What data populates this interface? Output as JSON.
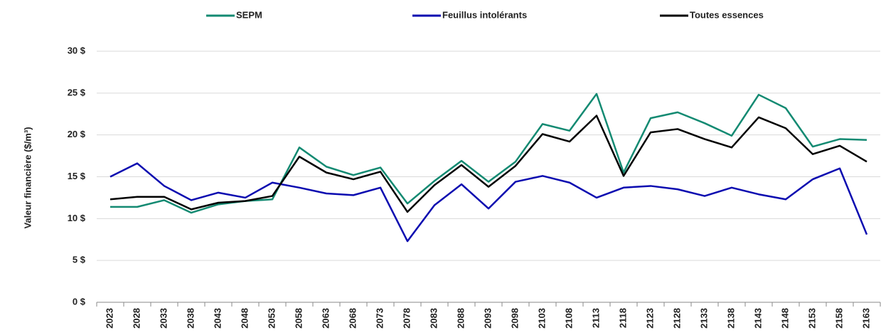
{
  "chart_data": {
    "type": "line",
    "y_label": "Valeur financière ($/m³)",
    "categories": [
      "2023",
      "2028",
      "2033",
      "2038",
      "2043",
      "2048",
      "2053",
      "2058",
      "2063",
      "2068",
      "2073",
      "2078",
      "2083",
      "2088",
      "2093",
      "2098",
      "2103",
      "2108",
      "2113",
      "2118",
      "2123",
      "2128",
      "2133",
      "2138",
      "2143",
      "2148",
      "2153",
      "2158",
      "2163"
    ],
    "series": [
      {
        "name": "SEPM",
        "color": "#138a72",
        "values": [
          11.4,
          11.4,
          12.2,
          10.7,
          11.7,
          12.1,
          12.3,
          18.5,
          16.2,
          15.2,
          16.1,
          11.8,
          14.5,
          16.9,
          14.4,
          16.8,
          21.3,
          20.5,
          24.9,
          15.5,
          22.0,
          22.7,
          21.4,
          19.9,
          24.8,
          23.2,
          18.6,
          19.5,
          19.4
        ]
      },
      {
        "name": "Feuillus intolérants",
        "color": "#0a0ab0",
        "values": [
          15.0,
          16.6,
          13.9,
          12.2,
          13.1,
          12.5,
          14.3,
          13.7,
          13.0,
          12.8,
          13.7,
          7.3,
          11.6,
          14.1,
          11.2,
          14.4,
          15.1,
          14.3,
          12.5,
          13.7,
          13.9,
          13.5,
          12.7,
          13.7,
          12.9,
          12.3,
          14.7,
          16.0,
          8.1
        ]
      },
      {
        "name": "Toutes essences",
        "color": "#000000",
        "values": [
          12.3,
          12.6,
          12.6,
          11.1,
          11.9,
          12.1,
          12.7,
          17.4,
          15.5,
          14.7,
          15.6,
          10.8,
          14.0,
          16.4,
          13.8,
          16.3,
          20.1,
          19.2,
          22.3,
          15.1,
          20.3,
          20.7,
          19.5,
          18.5,
          22.1,
          20.8,
          17.7,
          18.7,
          16.8
        ]
      }
    ],
    "ylim": [
      0,
      30
    ],
    "yticks": [
      {
        "value": 0,
        "label": "0 $"
      },
      {
        "value": 5,
        "label": "5 $"
      },
      {
        "value": 10,
        "label": "10 $"
      },
      {
        "value": 15,
        "label": "15 $"
      },
      {
        "value": 20,
        "label": "20 $"
      },
      {
        "value": 25,
        "label": "25 $"
      },
      {
        "value": 30,
        "label": "30 $"
      }
    ],
    "grid": true,
    "legend": "top"
  }
}
